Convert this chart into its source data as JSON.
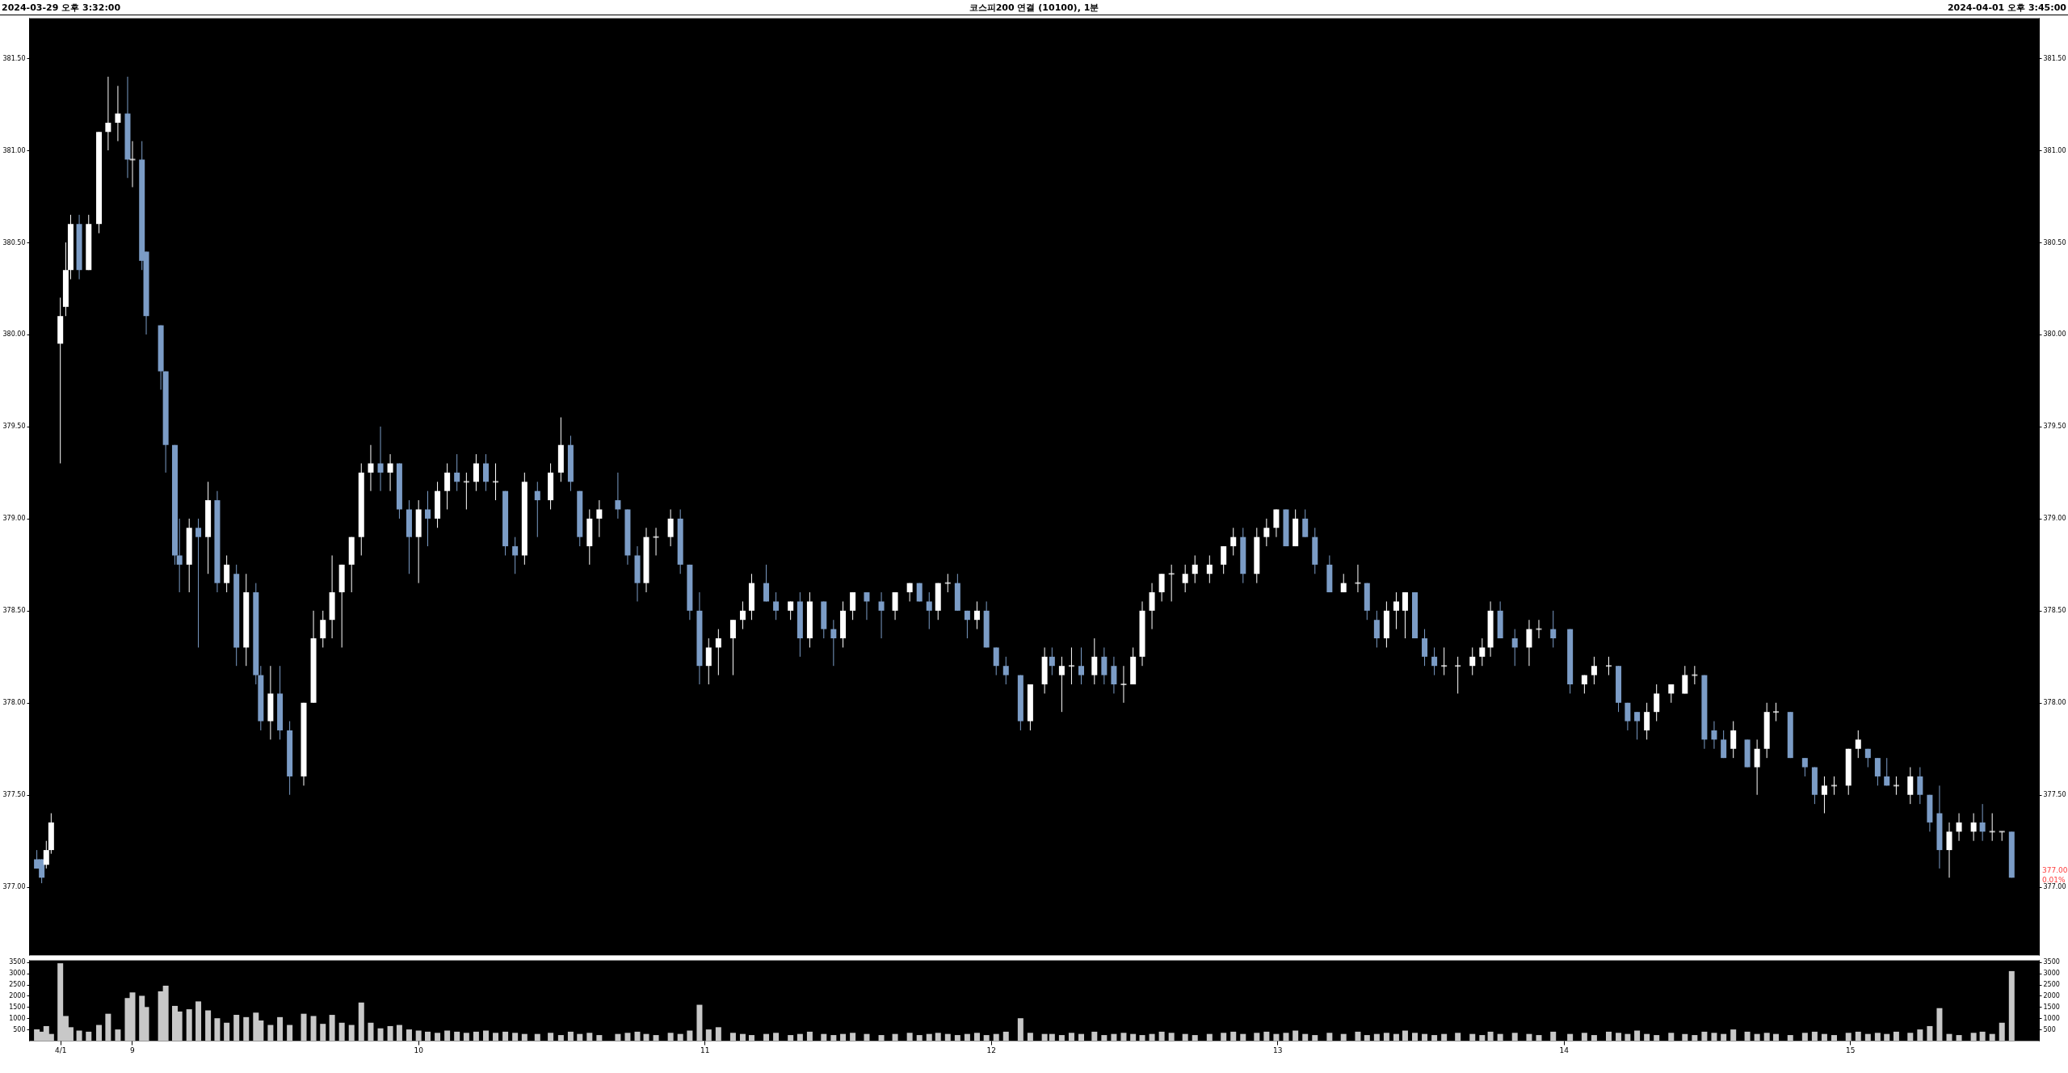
{
  "chart_data": [
    {
      "type": "candlestick",
      "title": "코스피200 연결 (10100), 1분",
      "annotations": [
        "2024-03-29 오후 3:32:00",
        "2024-04-01 오후 3:45:00",
        "377.00",
        "0.01%"
      ],
      "colors": [
        "#7b9cc6",
        "#7b9cc6",
        "#ffffff",
        "#ffffff",
        "#ffffff",
        "#ffffff",
        "#ffffff",
        "#7b9cc6",
        "#ffffff",
        "#ffffff",
        "#ffffff",
        "#ffffff",
        "#7b9cc6",
        "#ffffff",
        "#7b9cc6",
        "#7b9cc6",
        "#7b9cc6",
        "#7b9cc6",
        "#7b9cc6",
        "#7b9cc6",
        "#ffffff",
        "#7b9cc6",
        "#ffffff",
        "#7b9cc6",
        "#ffffff",
        "#7b9cc6",
        "#ffffff",
        "#7b9cc6",
        "#7b9cc6",
        "#ffffff",
        "#7b9cc6",
        "#7b9cc6",
        "#ffffff",
        "#ffffff",
        "#ffffff",
        "#ffffff",
        "#ffffff",
        "#ffffff",
        "#ffffff",
        "#ffffff",
        "#7b9cc6",
        "#ffffff",
        "#7b9cc6",
        "#7b9cc6",
        "#ffffff",
        "#7b9cc6",
        "#ffffff",
        "#ffffff",
        "#7b9cc6",
        "#ffffff",
        "#ffffff",
        "#7b9cc6",
        "#ffffff",
        "#7b9cc6",
        "#7b9cc6",
        "#ffffff",
        "#7b9cc6",
        "#ffffff",
        "#ffffff",
        "#7b9cc6",
        "#7b9cc6",
        "#ffffff",
        "#ffffff",
        "#7b9cc6",
        "#7b9cc6",
        "#7b9cc6",
        "#ffffff",
        "#ffffff",
        "#ffffff",
        "#7b9cc6",
        "#7b9cc6",
        "#7b9cc6",
        "#ffffff",
        "#ffffff",
        "#ffffff",
        "#ffffff",
        "#ffffff",
        "#7b9cc6",
        "#7b9cc6",
        "#ffffff",
        "#7b9cc6",
        "#ffffff",
        "#7b9cc6",
        "#7b9cc6",
        "#ffffff",
        "#ffffff",
        "#7b9cc6",
        "#7b9cc6",
        "#ffffff",
        "#ffffff",
        "#7b9cc6",
        "#7b9cc6",
        "#ffffff",
        "#ffffff",
        "#7b9cc6",
        "#7b9cc6",
        "#ffffff",
        "#7b9cc6",
        "#7b9cc6",
        "#7b9cc6",
        "#7b9cc6",
        "#ffffff",
        "#ffffff",
        "#7b9cc6",
        "#ffffff",
        "#ffffff",
        "#7b9cc6",
        "#ffffff",
        "#7b9cc6",
        "#7b9cc6",
        "#ffffff",
        "#ffffff",
        "#ffffff",
        "#ffffff",
        "#ffffff",
        "#ffffff",
        "#ffffff",
        "#ffffff",
        "#ffffff",
        "#ffffff",
        "#ffffff",
        "#7b9cc6",
        "#ffffff",
        "#ffffff",
        "#ffffff",
        "#7b9cc6",
        "#ffffff",
        "#7b9cc6",
        "#7b9cc6",
        "#7b9cc6",
        "#ffffff",
        "#ffffff",
        "#7b9cc6",
        "#7b9cc6",
        "#ffffff",
        "#ffffff",
        "#ffffff",
        "#7b9cc6",
        "#7b9cc6",
        "#7b9cc6",
        "#ffffff",
        "#ffffff",
        "#ffffff",
        "#ffffff",
        "#ffffff",
        "#7b9cc6",
        "#7b9cc6",
        "#ffffff",
        "#ffffff",
        "#7b9cc6",
        "#7b9cc6",
        "#ffffff",
        "#ffffff",
        "#ffffff",
        "#7b9cc6",
        "#7b9cc6",
        "#7b9cc6",
        "#ffffff",
        "#ffffff",
        "#ffffff",
        "#ffffff",
        "#ffffff",
        "#7b9cc6",
        "#7b9cc6",
        "#7b9cc6",
        "#ffffff",
        "#7b9cc6",
        "#ffffff",
        "#ffffff",
        "#ffffff",
        "#7b9cc6",
        "#7b9cc6",
        "#7b9cc6",
        "#ffffff",
        "#ffffff",
        "#ffffff",
        "#ffffff",
        "#7b9cc6",
        "#7b9cc6",
        "#7b9cc6",
        "#ffffff",
        "#ffffff",
        "#7b9cc6",
        "#7b9cc6",
        "#7b9cc6",
        "#ffffff",
        "#ffffff",
        "#ffffff",
        "#7b9cc6",
        "#ffffff",
        "#ffffff",
        "#7b9cc6"
      ],
      "x": [
        8.668,
        8.685,
        8.701,
        8.718,
        8.75,
        8.769,
        8.786,
        8.816,
        8.849,
        8.885,
        8.917,
        8.951,
        8.985,
        9.002,
        9.035,
        9.05,
        9.101,
        9.118,
        9.15,
        9.166,
        9.2,
        9.232,
        9.266,
        9.298,
        9.331,
        9.365,
        9.399,
        9.433,
        9.45,
        9.484,
        9.517,
        9.551,
        9.6,
        9.634,
        9.667,
        9.699,
        9.733,
        9.767,
        9.801,
        9.834,
        9.868,
        9.902,
        9.934,
        9.968,
        10.001,
        10.033,
        10.067,
        10.101,
        10.135,
        10.168,
        10.202,
        10.236,
        10.27,
        10.304,
        10.338,
        10.371,
        10.416,
        10.462,
        10.498,
        10.532,
        10.564,
        10.598,
        10.632,
        10.697,
        10.731,
        10.765,
        10.796,
        10.83,
        10.881,
        10.915,
        10.948,
        10.982,
        11.014,
        11.048,
        11.099,
        11.133,
        11.164,
        11.215,
        11.249,
        11.3,
        11.333,
        11.367,
        11.416,
        11.45,
        11.483,
        11.517,
        11.566,
        11.617,
        11.665,
        11.716,
        11.75,
        11.784,
        11.815,
        11.849,
        11.883,
        11.917,
        11.951,
        11.984,
        12.018,
        12.052,
        12.103,
        12.137,
        12.187,
        12.213,
        12.247,
        12.281,
        12.315,
        12.361,
        12.395,
        12.429,
        12.463,
        12.496,
        12.528,
        12.562,
        12.596,
        12.63,
        12.678,
        12.712,
        12.763,
        12.812,
        12.846,
        12.88,
        12.928,
        12.962,
        12.996,
        13.03,
        13.063,
        13.097,
        13.131,
        13.182,
        13.231,
        13.281,
        13.313,
        13.347,
        13.381,
        13.415,
        13.446,
        13.48,
        13.514,
        13.548,
        13.582,
        13.63,
        13.681,
        13.715,
        13.744,
        13.778,
        13.829,
        13.879,
        13.913,
        13.963,
        14.022,
        14.072,
        14.106,
        14.157,
        14.191,
        14.223,
        14.256,
        14.29,
        14.324,
        14.375,
        14.423,
        14.457,
        14.491,
        14.525,
        14.558,
        14.592,
        14.641,
        14.675,
        14.709,
        14.741,
        14.791,
        14.842,
        14.876,
        14.91,
        14.944,
        14.994,
        15.028,
        15.062,
        15.096,
        15.128,
        15.161,
        15.21,
        15.244,
        15.278,
        15.312,
        15.346,
        15.38,
        15.431,
        15.462,
        15.496,
        15.53,
        15.564
      ],
      "ohlc": [
        [
          377.15,
          377.2,
          377.1,
          377.1
        ],
        [
          377.15,
          377.15,
          377.02,
          377.05
        ],
        [
          377.12,
          377.25,
          377.1,
          377.2
        ],
        [
          377.2,
          377.4,
          377.18,
          377.35
        ],
        [
          379.95,
          380.2,
          379.3,
          380.1
        ],
        [
          380.15,
          380.5,
          380.1,
          380.35
        ],
        [
          380.35,
          380.65,
          380.3,
          380.6
        ],
        [
          380.6,
          380.65,
          380.3,
          380.35
        ],
        [
          380.35,
          380.65,
          380.35,
          380.6
        ],
        [
          380.6,
          381.1,
          380.55,
          381.1
        ],
        [
          381.1,
          381.4,
          381.0,
          381.15
        ],
        [
          381.15,
          381.35,
          381.05,
          381.2
        ],
        [
          381.2,
          381.4,
          380.85,
          380.95
        ],
        [
          380.95,
          381.05,
          380.8,
          380.95
        ],
        [
          380.95,
          381.05,
          380.35,
          380.4
        ],
        [
          380.45,
          380.45,
          380.0,
          380.1
        ],
        [
          380.05,
          380.05,
          379.7,
          379.8
        ],
        [
          379.8,
          379.8,
          379.25,
          379.4
        ],
        [
          379.4,
          379.4,
          378.75,
          378.8
        ],
        [
          378.8,
          379.0,
          378.6,
          378.75
        ],
        [
          378.75,
          379.0,
          378.6,
          378.95
        ],
        [
          378.95,
          379.0,
          378.3,
          378.9
        ],
        [
          378.9,
          379.2,
          378.7,
          379.1
        ],
        [
          379.1,
          379.15,
          378.6,
          378.65
        ],
        [
          378.65,
          378.8,
          378.6,
          378.75
        ],
        [
          378.7,
          378.75,
          378.2,
          378.3
        ],
        [
          378.3,
          378.7,
          378.2,
          378.6
        ],
        [
          378.6,
          378.65,
          378.1,
          378.15
        ],
        [
          378.15,
          378.2,
          377.85,
          377.9
        ],
        [
          377.9,
          378.2,
          377.8,
          378.05
        ],
        [
          378.05,
          378.2,
          377.8,
          377.85
        ],
        [
          377.85,
          377.9,
          377.5,
          377.6
        ],
        [
          377.6,
          378.0,
          377.55,
          378.0
        ],
        [
          378.0,
          378.5,
          378.0,
          378.35
        ],
        [
          378.35,
          378.5,
          378.3,
          378.45
        ],
        [
          378.45,
          378.8,
          378.35,
          378.6
        ],
        [
          378.6,
          378.75,
          378.3,
          378.75
        ],
        [
          378.75,
          378.9,
          378.6,
          378.9
        ],
        [
          378.9,
          379.3,
          378.8,
          379.25
        ],
        [
          379.25,
          379.4,
          379.15,
          379.3
        ],
        [
          379.3,
          379.5,
          379.15,
          379.25
        ],
        [
          379.25,
          379.35,
          379.15,
          379.3
        ],
        [
          379.3,
          379.3,
          379.0,
          379.05
        ],
        [
          379.05,
          379.1,
          378.7,
          378.9
        ],
        [
          378.9,
          379.1,
          378.65,
          379.05
        ],
        [
          379.05,
          379.15,
          378.85,
          379.0
        ],
        [
          379.0,
          379.2,
          378.95,
          379.15
        ],
        [
          379.15,
          379.3,
          379.05,
          379.25
        ],
        [
          379.25,
          379.35,
          379.15,
          379.2
        ],
        [
          379.2,
          379.25,
          379.05,
          379.2
        ],
        [
          379.2,
          379.35,
          379.15,
          379.3
        ],
        [
          379.3,
          379.35,
          379.15,
          379.2
        ],
        [
          379.2,
          379.3,
          379.1,
          379.2
        ],
        [
          379.15,
          379.15,
          378.8,
          378.85
        ],
        [
          378.85,
          378.9,
          378.7,
          378.8
        ],
        [
          378.8,
          379.25,
          378.75,
          379.2
        ],
        [
          379.15,
          379.2,
          378.9,
          379.1
        ],
        [
          379.1,
          379.3,
          379.05,
          379.25
        ],
        [
          379.25,
          379.55,
          379.2,
          379.4
        ],
        [
          379.4,
          379.45,
          379.15,
          379.2
        ],
        [
          379.15,
          379.15,
          378.85,
          378.9
        ],
        [
          378.85,
          379.05,
          378.75,
          379.0
        ],
        [
          379.0,
          379.1,
          378.9,
          379.05
        ],
        [
          379.1,
          379.25,
          379.0,
          379.05
        ],
        [
          379.05,
          379.05,
          378.75,
          378.8
        ],
        [
          378.8,
          378.85,
          378.55,
          378.65
        ],
        [
          378.65,
          378.95,
          378.6,
          378.9
        ],
        [
          378.9,
          378.95,
          378.8,
          378.9
        ],
        [
          378.9,
          379.05,
          378.85,
          379.0
        ],
        [
          379.0,
          379.05,
          378.7,
          378.75
        ],
        [
          378.75,
          378.75,
          378.45,
          378.5
        ],
        [
          378.5,
          378.6,
          378.1,
          378.2
        ],
        [
          378.2,
          378.35,
          378.1,
          378.3
        ],
        [
          378.3,
          378.4,
          378.15,
          378.35
        ],
        [
          378.35,
          378.45,
          378.15,
          378.45
        ],
        [
          378.45,
          378.55,
          378.4,
          378.5
        ],
        [
          378.5,
          378.7,
          378.45,
          378.65
        ],
        [
          378.65,
          378.75,
          378.55,
          378.55
        ],
        [
          378.55,
          378.6,
          378.45,
          378.5
        ],
        [
          378.5,
          378.55,
          378.45,
          378.55
        ],
        [
          378.55,
          378.6,
          378.25,
          378.35
        ],
        [
          378.35,
          378.6,
          378.3,
          378.55
        ],
        [
          378.55,
          378.55,
          378.35,
          378.4
        ],
        [
          378.4,
          378.45,
          378.2,
          378.35
        ],
        [
          378.35,
          378.55,
          378.3,
          378.5
        ],
        [
          378.5,
          378.6,
          378.45,
          378.6
        ],
        [
          378.6,
          378.6,
          378.45,
          378.55
        ],
        [
          378.55,
          378.6,
          378.35,
          378.5
        ],
        [
          378.5,
          378.6,
          378.45,
          378.6
        ],
        [
          378.6,
          378.65,
          378.55,
          378.65
        ],
        [
          378.65,
          378.65,
          378.55,
          378.55
        ],
        [
          378.55,
          378.6,
          378.4,
          378.5
        ],
        [
          378.5,
          378.65,
          378.45,
          378.65
        ],
        [
          378.65,
          378.7,
          378.6,
          378.65
        ],
        [
          378.65,
          378.7,
          378.5,
          378.5
        ],
        [
          378.5,
          378.5,
          378.35,
          378.45
        ],
        [
          378.45,
          378.55,
          378.4,
          378.5
        ],
        [
          378.5,
          378.55,
          378.3,
          378.3
        ],
        [
          378.3,
          378.3,
          378.15,
          378.2
        ],
        [
          378.2,
          378.25,
          378.1,
          378.15
        ],
        [
          378.15,
          378.15,
          377.85,
          377.9
        ],
        [
          377.9,
          378.1,
          377.85,
          378.1
        ],
        [
          378.1,
          378.3,
          378.05,
          378.25
        ],
        [
          378.25,
          378.3,
          378.15,
          378.2
        ],
        [
          378.15,
          378.25,
          377.95,
          378.2
        ],
        [
          378.2,
          378.3,
          378.1,
          378.2
        ],
        [
          378.2,
          378.3,
          378.1,
          378.15
        ],
        [
          378.15,
          378.35,
          378.1,
          378.25
        ],
        [
          378.25,
          378.3,
          378.1,
          378.15
        ],
        [
          378.2,
          378.25,
          378.05,
          378.1
        ],
        [
          378.1,
          378.2,
          378.0,
          378.1
        ],
        [
          378.1,
          378.3,
          378.1,
          378.25
        ],
        [
          378.25,
          378.55,
          378.2,
          378.5
        ],
        [
          378.5,
          378.65,
          378.4,
          378.6
        ],
        [
          378.6,
          378.7,
          378.55,
          378.7
        ],
        [
          378.7,
          378.75,
          378.55,
          378.7
        ],
        [
          378.65,
          378.75,
          378.6,
          378.7
        ],
        [
          378.7,
          378.8,
          378.65,
          378.75
        ],
        [
          378.7,
          378.8,
          378.65,
          378.75
        ],
        [
          378.75,
          378.85,
          378.7,
          378.85
        ],
        [
          378.85,
          378.95,
          378.8,
          378.9
        ],
        [
          378.9,
          378.95,
          378.65,
          378.7
        ],
        [
          378.7,
          378.95,
          378.65,
          378.9
        ],
        [
          378.9,
          379.0,
          378.85,
          378.95
        ],
        [
          378.95,
          379.05,
          378.9,
          379.05
        ],
        [
          379.05,
          379.05,
          378.85,
          378.85
        ],
        [
          378.85,
          379.05,
          378.85,
          379.0
        ],
        [
          379.0,
          379.05,
          378.9,
          378.9
        ],
        [
          378.9,
          378.95,
          378.7,
          378.75
        ],
        [
          378.75,
          378.8,
          378.6,
          378.6
        ],
        [
          378.6,
          378.7,
          378.6,
          378.65
        ],
        [
          378.65,
          378.75,
          378.6,
          378.65
        ],
        [
          378.65,
          378.65,
          378.45,
          378.5
        ],
        [
          378.45,
          378.5,
          378.3,
          378.35
        ],
        [
          378.35,
          378.55,
          378.3,
          378.5
        ],
        [
          378.5,
          378.6,
          378.4,
          378.55
        ],
        [
          378.5,
          378.6,
          378.35,
          378.6
        ],
        [
          378.6,
          378.6,
          378.35,
          378.35
        ],
        [
          378.35,
          378.4,
          378.2,
          378.25
        ],
        [
          378.25,
          378.3,
          378.15,
          378.2
        ],
        [
          378.2,
          378.3,
          378.15,
          378.2
        ],
        [
          378.2,
          378.25,
          378.05,
          378.2
        ],
        [
          378.2,
          378.3,
          378.15,
          378.25
        ],
        [
          378.25,
          378.35,
          378.2,
          378.3
        ],
        [
          378.3,
          378.55,
          378.25,
          378.5
        ],
        [
          378.5,
          378.55,
          378.35,
          378.35
        ],
        [
          378.35,
          378.4,
          378.2,
          378.3
        ],
        [
          378.3,
          378.45,
          378.2,
          378.4
        ],
        [
          378.4,
          378.45,
          378.35,
          378.4
        ],
        [
          378.4,
          378.5,
          378.3,
          378.35
        ],
        [
          378.4,
          378.4,
          378.05,
          378.1
        ],
        [
          378.1,
          378.15,
          378.05,
          378.15
        ],
        [
          378.15,
          378.25,
          378.1,
          378.2
        ],
        [
          378.2,
          378.25,
          378.15,
          378.2
        ],
        [
          378.2,
          378.2,
          377.95,
          378.0
        ],
        [
          378.0,
          378.0,
          377.85,
          377.9
        ],
        [
          377.95,
          377.95,
          377.8,
          377.9
        ],
        [
          377.85,
          378.0,
          377.8,
          377.95
        ],
        [
          377.95,
          378.1,
          377.9,
          378.05
        ],
        [
          378.05,
          378.1,
          378.0,
          378.1
        ],
        [
          378.05,
          378.2,
          378.05,
          378.15
        ],
        [
          378.15,
          378.2,
          378.1,
          378.15
        ],
        [
          378.15,
          378.15,
          377.75,
          377.8
        ],
        [
          377.85,
          377.9,
          377.75,
          377.8
        ],
        [
          377.8,
          377.85,
          377.7,
          377.7
        ],
        [
          377.75,
          377.9,
          377.7,
          377.85
        ],
        [
          377.8,
          377.8,
          377.65,
          377.65
        ],
        [
          377.65,
          377.8,
          377.5,
          377.75
        ],
        [
          377.75,
          378.0,
          377.7,
          377.95
        ],
        [
          377.95,
          378.0,
          377.9,
          377.95
        ],
        [
          377.95,
          377.95,
          377.7,
          377.7
        ],
        [
          377.7,
          377.7,
          377.6,
          377.65
        ],
        [
          377.65,
          377.65,
          377.45,
          377.5
        ],
        [
          377.5,
          377.6,
          377.4,
          377.55
        ],
        [
          377.55,
          377.6,
          377.5,
          377.55
        ],
        [
          377.55,
          377.75,
          377.5,
          377.75
        ],
        [
          377.75,
          377.85,
          377.7,
          377.8
        ],
        [
          377.75,
          377.75,
          377.65,
          377.7
        ],
        [
          377.7,
          377.7,
          377.55,
          377.6
        ],
        [
          377.6,
          377.7,
          377.55,
          377.55
        ],
        [
          377.55,
          377.6,
          377.5,
          377.55
        ],
        [
          377.5,
          377.65,
          377.45,
          377.6
        ],
        [
          377.6,
          377.65,
          377.45,
          377.5
        ],
        [
          377.5,
          377.5,
          377.3,
          377.35
        ],
        [
          377.4,
          377.55,
          377.1,
          377.2
        ],
        [
          377.2,
          377.35,
          377.05,
          377.3
        ],
        [
          377.3,
          377.4,
          377.25,
          377.35
        ],
        [
          377.3,
          377.4,
          377.25,
          377.35
        ],
        [
          377.35,
          377.45,
          377.25,
          377.3
        ],
        [
          377.3,
          377.4,
          377.25,
          377.3
        ],
        [
          377.3,
          377.3,
          377.25,
          377.3
        ],
        [
          377.3,
          377.3,
          377.05,
          377.05
        ]
      ],
      "xlim": [
        8.655,
        15.645
      ],
      "ylim": [
        376.63,
        381.72
      ],
      "yticks": [
        {
          "value": 377,
          "label": "377.00"
        },
        {
          "value": 377.5,
          "label": "377.50"
        },
        {
          "value": 378,
          "label": "378.00"
        },
        {
          "value": 378.5,
          "label": "378.50"
        },
        {
          "value": 379,
          "label": "379.00"
        },
        {
          "value": 379.5,
          "label": "379.50"
        },
        {
          "value": 380,
          "label": "380.00"
        },
        {
          "value": 380.5,
          "label": "380.50"
        },
        {
          "value": 381,
          "label": "381.00"
        },
        {
          "value": 381.5,
          "label": "381.50"
        }
      ],
      "y2lim": [
        376.63,
        381.72
      ],
      "y2ticks": [
        {
          "value": 377,
          "label": "377.00"
        },
        {
          "value": 377.5,
          "label": "377.50"
        },
        {
          "value": 378,
          "label": "378.00"
        },
        {
          "value": 378.5,
          "label": "378.50"
        },
        {
          "value": 379,
          "label": "379.00"
        },
        {
          "value": 379.5,
          "label": "379.50"
        },
        {
          "value": 380,
          "label": "380.00"
        },
        {
          "value": 380.5,
          "label": "380.50"
        },
        {
          "value": 381,
          "label": "381.00"
        },
        {
          "value": 381.5,
          "label": "381.50"
        }
      ],
      "tick_labels": "y"
    },
    {
      "type": "bar",
      "color": "#c8c8c8",
      "x": [
        8.668,
        8.685,
        8.701,
        8.718,
        8.75,
        8.769,
        8.786,
        8.816,
        8.849,
        8.885,
        8.917,
        8.951,
        8.985,
        9.002,
        9.035,
        9.05,
        9.101,
        9.118,
        9.15,
        9.166,
        9.2,
        9.232,
        9.266,
        9.298,
        9.331,
        9.365,
        9.399,
        9.433,
        9.45,
        9.484,
        9.517,
        9.551,
        9.6,
        9.634,
        9.667,
        9.699,
        9.733,
        9.767,
        9.801,
        9.834,
        9.868,
        9.902,
        9.934,
        9.968,
        10.001,
        10.033,
        10.067,
        10.101,
        10.135,
        10.168,
        10.202,
        10.236,
        10.27,
        10.304,
        10.338,
        10.371,
        10.416,
        10.462,
        10.498,
        10.532,
        10.564,
        10.598,
        10.632,
        10.697,
        10.731,
        10.765,
        10.796,
        10.83,
        10.881,
        10.915,
        10.948,
        10.982,
        11.014,
        11.048,
        11.099,
        11.133,
        11.164,
        11.215,
        11.249,
        11.3,
        11.333,
        11.367,
        11.416,
        11.45,
        11.483,
        11.517,
        11.566,
        11.617,
        11.665,
        11.716,
        11.75,
        11.784,
        11.815,
        11.849,
        11.883,
        11.917,
        11.951,
        11.984,
        12.018,
        12.052,
        12.103,
        12.137,
        12.187,
        12.213,
        12.247,
        12.281,
        12.315,
        12.361,
        12.395,
        12.429,
        12.463,
        12.496,
        12.528,
        12.562,
        12.596,
        12.63,
        12.678,
        12.712,
        12.763,
        12.812,
        12.846,
        12.88,
        12.928,
        12.962,
        12.996,
        13.03,
        13.063,
        13.097,
        13.131,
        13.182,
        13.231,
        13.281,
        13.313,
        13.347,
        13.381,
        13.415,
        13.446,
        13.48,
        13.514,
        13.548,
        13.582,
        13.63,
        13.681,
        13.715,
        13.744,
        13.778,
        13.829,
        13.879,
        13.913,
        13.963,
        14.022,
        14.072,
        14.106,
        14.157,
        14.191,
        14.223,
        14.256,
        14.29,
        14.324,
        14.375,
        14.423,
        14.457,
        14.491,
        14.525,
        14.558,
        14.592,
        14.641,
        14.675,
        14.709,
        14.741,
        14.791,
        14.842,
        14.876,
        14.91,
        14.944,
        14.994,
        15.028,
        15.062,
        15.096,
        15.128,
        15.161,
        15.21,
        15.244,
        15.278,
        15.312,
        15.346,
        15.38,
        15.431,
        15.462,
        15.496,
        15.53,
        15.564
      ],
      "values": [
        500,
        400,
        650,
        300,
        3450,
        1100,
        600,
        450,
        400,
        700,
        1200,
        500,
        1900,
        2150,
        2000,
        1500,
        2200,
        2450,
        1550,
        1300,
        1400,
        1750,
        1350,
        1000,
        800,
        1150,
        1050,
        1250,
        900,
        700,
        1050,
        700,
        1200,
        1100,
        750,
        1150,
        800,
        700,
        1700,
        800,
        550,
        650,
        700,
        500,
        450,
        400,
        350,
        450,
        400,
        350,
        400,
        450,
        350,
        400,
        350,
        300,
        300,
        350,
        250,
        400,
        300,
        350,
        250,
        300,
        350,
        400,
        300,
        250,
        350,
        300,
        450,
        1600,
        500,
        600,
        350,
        300,
        250,
        300,
        350,
        250,
        300,
        400,
        300,
        250,
        300,
        350,
        300,
        250,
        300,
        350,
        250,
        300,
        350,
        300,
        250,
        300,
        350,
        250,
        300,
        400,
        1000,
        350,
        300,
        300,
        250,
        350,
        300,
        400,
        250,
        300,
        350,
        300,
        250,
        300,
        400,
        350,
        300,
        250,
        300,
        350,
        400,
        300,
        350,
        400,
        300,
        350,
        450,
        300,
        250,
        350,
        300,
        400,
        250,
        300,
        350,
        300,
        450,
        350,
        300,
        250,
        300,
        350,
        300,
        250,
        400,
        300,
        350,
        300,
        250,
        400,
        300,
        350,
        250,
        400,
        350,
        300,
        450,
        300,
        250,
        350,
        300,
        250,
        400,
        350,
        300,
        500,
        400,
        300,
        350,
        300,
        250,
        350,
        400,
        300,
        250,
        350,
        400,
        300,
        350,
        300,
        400,
        350,
        500,
        650,
        1450,
        300,
        250,
        350,
        400,
        300,
        800,
        3100
      ],
      "xlim": [
        8.655,
        15.645
      ],
      "ylim": [
        0,
        3600
      ],
      "xticks": [
        {
          "value": 8.75,
          "label": "4/1"
        },
        9,
        10,
        11,
        12,
        13,
        14,
        15
      ],
      "yticks": [
        500,
        1000,
        1500,
        2000,
        2500,
        3000,
        3500
      ],
      "y2lim": [
        0,
        3600
      ],
      "y2ticks": [
        500,
        1000,
        1500,
        2000,
        2500,
        3000,
        3500
      ]
    }
  ]
}
